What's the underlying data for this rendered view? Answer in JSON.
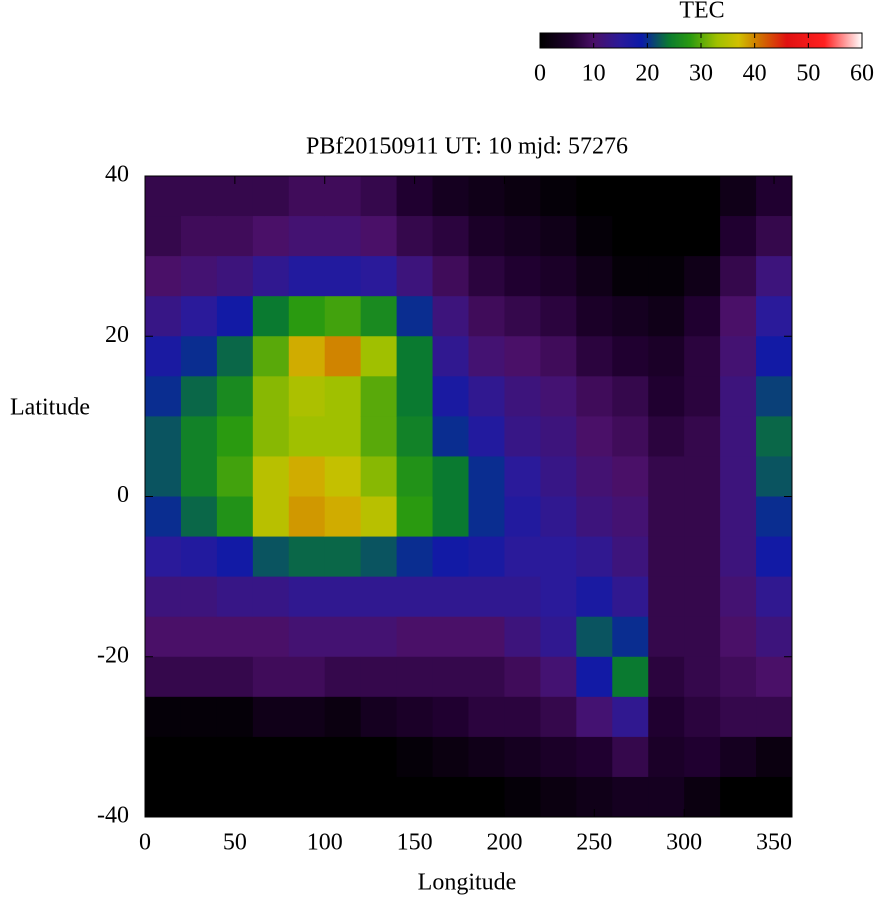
{
  "chart_data": {
    "type": "heatmap",
    "title": "PBf20150911  UT: 10  mjd: 57276",
    "x_label": "Longitude",
    "y_label": "Latitude",
    "colorbar_label": "TEC",
    "xlim": [
      0,
      360
    ],
    "ylim": [
      -40,
      40
    ],
    "xticks": [
      0,
      50,
      100,
      150,
      200,
      250,
      300,
      350
    ],
    "yticks": [
      -40,
      -20,
      0,
      20,
      40
    ],
    "clim": [
      0,
      60
    ],
    "colorbar_ticks": [
      0,
      10,
      20,
      30,
      40,
      50,
      60
    ],
    "colormap": [
      {
        "value": 0,
        "color": "#000000"
      },
      {
        "value": 6,
        "color": "#200030"
      },
      {
        "value": 10,
        "color": "#4a1068"
      },
      {
        "value": 15,
        "color": "#2a1a9a"
      },
      {
        "value": 19,
        "color": "#0a1aa8"
      },
      {
        "value": 24,
        "color": "#0a7a30"
      },
      {
        "value": 28,
        "color": "#2a9a10"
      },
      {
        "value": 33,
        "color": "#a0c000"
      },
      {
        "value": 37,
        "color": "#d0c000"
      },
      {
        "value": 41,
        "color": "#d07000"
      },
      {
        "value": 46,
        "color": "#e01010"
      },
      {
        "value": 53,
        "color": "#ff2020"
      },
      {
        "value": 60,
        "color": "#ffffff"
      }
    ],
    "x": [
      10,
      30,
      50,
      70,
      90,
      110,
      130,
      150,
      170,
      190,
      210,
      230,
      250,
      270,
      290,
      310,
      330,
      350
    ],
    "y": [
      37.5,
      32.5,
      27.5,
      22.5,
      17.5,
      12.5,
      7.5,
      2.5,
      -2.5,
      -7.5,
      -12.5,
      -17.5,
      -22.5,
      -27.5,
      -32.5,
      -37.5
    ],
    "z": [
      [
        8,
        8,
        10,
        13,
        17,
        20,
        22,
        22,
        20,
        15,
        12,
        10,
        8,
        1,
        0,
        0
      ],
      [
        8,
        9,
        11,
        15,
        20,
        23,
        25,
        25,
        23,
        16,
        12,
        10,
        8,
        1,
        0,
        0
      ],
      [
        8,
        9,
        12,
        18,
        23,
        26,
        28,
        29,
        27,
        18,
        13,
        10,
        8,
        1,
        0,
        0
      ],
      [
        8,
        10,
        14,
        24,
        30,
        32,
        32,
        35,
        35,
        22,
        13,
        10,
        9,
        3,
        0,
        0
      ],
      [
        9,
        11,
        16,
        28,
        38,
        34,
        33,
        38,
        39,
        23,
        14,
        11,
        9,
        3,
        0,
        0
      ],
      [
        9,
        11,
        16,
        29,
        40,
        33,
        33,
        36,
        38,
        23,
        14,
        11,
        8,
        2,
        0,
        0
      ],
      [
        8,
        10,
        15,
        26,
        33,
        30,
        30,
        32,
        35,
        22,
        14,
        11,
        8,
        4,
        0,
        0
      ],
      [
        6,
        8,
        12,
        20,
        24,
        24,
        25,
        27,
        28,
        20,
        14,
        10,
        8,
        5,
        1,
        0
      ],
      [
        4,
        7,
        9,
        12,
        14,
        17,
        20,
        24,
        24,
        18,
        14,
        10,
        8,
        6,
        2,
        0
      ],
      [
        3,
        5,
        7,
        9,
        11,
        14,
        16,
        20,
        20,
        17,
        14,
        10,
        8,
        7,
        3,
        0
      ],
      [
        2,
        4,
        6,
        8,
        10,
        12,
        13,
        15,
        16,
        15,
        14,
        12,
        9,
        7,
        4,
        1
      ],
      [
        1,
        3,
        5,
        7,
        9,
        11,
        12,
        13,
        14,
        15,
        15,
        14,
        11,
        8,
        5,
        2
      ],
      [
        0,
        1,
        3,
        5,
        7,
        9,
        10,
        11,
        12,
        14,
        17,
        22,
        18,
        11,
        6,
        3
      ],
      [
        0,
        0,
        1,
        4,
        6,
        8,
        9,
        10,
        11,
        12,
        14,
        20,
        24,
        14,
        8,
        4
      ],
      [
        0,
        0,
        1,
        3,
        5,
        6,
        7,
        8,
        8,
        8,
        8,
        8,
        7,
        6,
        5,
        4
      ],
      [
        0,
        0,
        3,
        6,
        7,
        7,
        8,
        8,
        8,
        8,
        8,
        8,
        8,
        7,
        6,
        2
      ],
      [
        3,
        6,
        8,
        10,
        11,
        12,
        12,
        12,
        12,
        12,
        11,
        10,
        9,
        8,
        4,
        0
      ],
      [
        6,
        8,
        12,
        15,
        18,
        21,
        23,
        22,
        20,
        18,
        14,
        12,
        10,
        8,
        2,
        0
      ]
    ]
  }
}
